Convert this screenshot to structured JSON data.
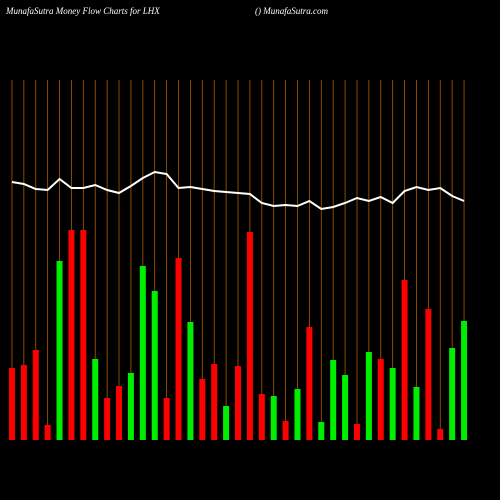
{
  "chart_data": {
    "type": "bar",
    "title": "MunafaSutra  Money Flow  Charts for LHX",
    "subtitle": "() MunafaSutra.com",
    "categories": [
      null,
      null,
      null,
      null,
      null,
      null,
      null,
      null,
      null,
      null,
      null,
      null,
      null,
      null,
      null,
      null,
      null,
      null,
      null,
      null,
      null,
      null,
      null,
      null,
      null,
      null,
      null,
      null,
      null,
      null,
      null,
      null,
      null,
      null,
      null,
      null,
      null,
      null,
      null
    ],
    "values": [
      72,
      75,
      90,
      15,
      179,
      210,
      210,
      81,
      42,
      54,
      67,
      174,
      149,
      42,
      182,
      118,
      61,
      76,
      34,
      74,
      208,
      46,
      44,
      19,
      51,
      113,
      18,
      80,
      65,
      16,
      88,
      81,
      72,
      160,
      53,
      131,
      11,
      92,
      119
    ],
    "bar_colors": [
      "#ff0000",
      "#ff0000",
      "#ff0000",
      "#ff0000",
      "#00ee00",
      "#ff0000",
      "#ff0000",
      "#00ee00",
      "#ff0000",
      "#ff0000",
      "#00ee00",
      "#00ee00",
      "#00ee00",
      "#ff0000",
      "#ff0000",
      "#00ee00",
      "#ff0000",
      "#ff0000",
      "#00ee00",
      "#ff0000",
      "#ff0000",
      "#ff0000",
      "#00ee00",
      "#ff0000",
      "#00ee00",
      "#ff0000",
      "#00ee00",
      "#00ee00",
      "#00ee00",
      "#ff0000",
      "#00ee00",
      "#ff0000",
      "#00ee00",
      "#ff0000",
      "#00ee00",
      "#ff0000",
      "#ff0000",
      "#00ee00",
      "#00ee00"
    ],
    "line_values": [
      258,
      256,
      251,
      250,
      261,
      252,
      252,
      255,
      250,
      247,
      254,
      262,
      268,
      266,
      252,
      253,
      251,
      249,
      248,
      247,
      246,
      237,
      234,
      235,
      234,
      239,
      231,
      233,
      237,
      242,
      239,
      243,
      237,
      249,
      253,
      250,
      252,
      244,
      239
    ],
    "line_color": "#ffffff",
    "grid_color": "#b05a00",
    "ylim": [
      0,
      360
    ]
  }
}
